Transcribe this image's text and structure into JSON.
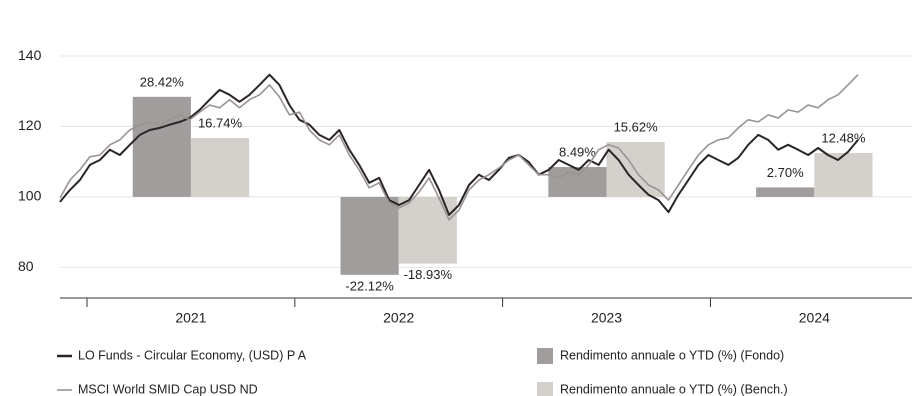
{
  "chart_data": {
    "type": "combo",
    "categories": [
      "2021",
      "2022",
      "2023",
      "2024"
    ],
    "xlim": [
      2020.87,
      2024.97
    ],
    "xticks": [
      2021,
      2022,
      2023,
      2024,
      2025
    ],
    "ylim": [
      71.3,
      147.4
    ],
    "yticks": [
      80,
      100,
      120,
      140
    ],
    "y2lim": [
      -28.7,
      47.4
    ],
    "grid": true,
    "legend": "bottom",
    "x": [
      2020.87,
      2020.918,
      2020.966,
      2021.014,
      2021.062,
      2021.11,
      2021.158,
      2021.206,
      2021.254,
      2021.302,
      2021.35,
      2021.398,
      2021.446,
      2021.494,
      2021.542,
      2021.59,
      2021.638,
      2021.686,
      2021.734,
      2021.782,
      2021.83,
      2021.878,
      2021.926,
      2021.974,
      2022.022,
      2022.07,
      2022.118,
      2022.166,
      2022.214,
      2022.262,
      2022.31,
      2022.358,
      2022.406,
      2022.454,
      2022.502,
      2022.55,
      2022.598,
      2022.646,
      2022.694,
      2022.742,
      2022.79,
      2022.838,
      2022.886,
      2022.934,
      2022.982,
      2023.03,
      2023.078,
      2023.126,
      2023.174,
      2023.222,
      2023.27,
      2023.318,
      2023.366,
      2023.414,
      2023.462,
      2023.51,
      2023.558,
      2023.606,
      2023.654,
      2023.702,
      2023.75,
      2023.798,
      2023.846,
      2023.894,
      2023.942,
      2023.99,
      2024.038,
      2024.086,
      2024.134,
      2024.182,
      2024.23,
      2024.278,
      2024.326,
      2024.374,
      2024.422,
      2024.47,
      2024.518,
      2024.566,
      2024.614,
      2024.662,
      2024.71
    ],
    "series": [
      {
        "name": "LO Funds - Circular Economy, (USD) P A",
        "type": "line",
        "color": "#2a2426",
        "values": [
          98.6,
          102,
          104.8,
          109.1,
          110.5,
          113.4,
          111.9,
          114.8,
          117.6,
          119,
          119.6,
          120.5,
          121.3,
          122.4,
          124.7,
          127.6,
          130.4,
          129,
          127,
          129,
          131.8,
          134.7,
          131.8,
          126.1,
          121.9,
          120.5,
          117.6,
          116.2,
          119,
          113.4,
          109.1,
          104,
          105.4,
          99.1,
          97.7,
          99.1,
          103.4,
          107.7,
          102,
          94.9,
          97.7,
          103.4,
          106.3,
          104.8,
          107.7,
          111.1,
          111.9,
          109.9,
          106.3,
          107.7,
          110.5,
          109.1,
          107.7,
          110.5,
          109.1,
          113.4,
          110.5,
          106.3,
          103.4,
          100.6,
          99.1,
          95.7,
          100.6,
          104.8,
          109.1,
          111.9,
          110.5,
          109.1,
          111.1,
          114.8,
          117.6,
          116.2,
          113.4,
          114.8,
          113.4,
          111.9,
          113.9,
          111.9,
          110.5,
          112.8,
          116.2
        ]
      },
      {
        "name": "MSCI World SMID Cap USD ND",
        "type": "line",
        "color": "#9a9491",
        "values": [
          99.7,
          104.8,
          107.7,
          111.4,
          111.9,
          114.8,
          116.2,
          119,
          120.5,
          121.3,
          120.5,
          121.9,
          123.3,
          121.9,
          124.1,
          126.1,
          125.3,
          127.6,
          125.3,
          127.6,
          129,
          131.8,
          128.4,
          123.3,
          124.1,
          119,
          116.2,
          114.8,
          117.6,
          111.9,
          107.7,
          102.6,
          104,
          98.3,
          96.9,
          98.3,
          101.4,
          105.4,
          99.7,
          93.5,
          96.3,
          102,
          104.8,
          106.3,
          108.2,
          110.5,
          111.9,
          109.1,
          106.3,
          106.3,
          105.4,
          107.1,
          106.3,
          109.1,
          113.4,
          114.8,
          113.9,
          110.5,
          106.3,
          103.4,
          102,
          99.1,
          103.4,
          107.7,
          111.9,
          114.8,
          116.2,
          116.8,
          119.6,
          121.9,
          121.3,
          123.3,
          122.4,
          124.7,
          124.1,
          126.1,
          125.3,
          127.6,
          129,
          131.8,
          134.7
        ]
      },
      {
        "name": "Rendimento annuale o YTD (%) (Fondo)",
        "type": "bar",
        "axis": "y2",
        "color": "#a19d9d",
        "values": [
          28.42,
          -22.12,
          8.49,
          2.7
        ],
        "value_labels": [
          "28.42%",
          "-22.12%",
          "8.49%",
          "2.70%"
        ]
      },
      {
        "name": "Rendimento annuale o YTD (%) (Bench.)",
        "type": "bar",
        "axis": "y2",
        "color": "#d4d0cc",
        "values": [
          16.74,
          -18.93,
          15.62,
          12.48
        ],
        "value_labels": [
          "16.74%",
          "-18.93%",
          "15.62%",
          "12.48%"
        ]
      }
    ]
  }
}
